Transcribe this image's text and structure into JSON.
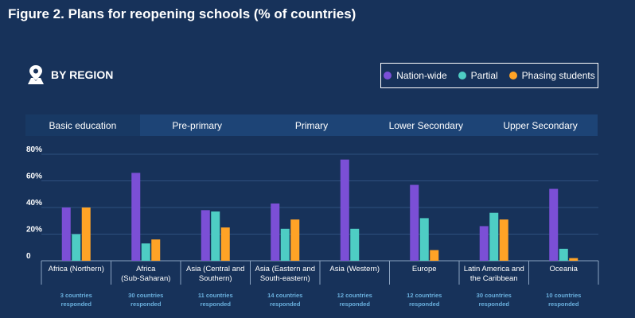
{
  "title": "Figure 2.  Plans for reopening schools (% of countries)",
  "section": {
    "label": "BY REGION",
    "icon": "location-pin-icon"
  },
  "legend": [
    {
      "label": "Nation-wide",
      "color": "#7b4fd6"
    },
    {
      "label": "Partial",
      "color": "#4ecdc4"
    },
    {
      "label": "Phasing students",
      "color": "#ffa326"
    }
  ],
  "tabs": [
    {
      "label": "Basic education",
      "active": true
    },
    {
      "label": "Pre-primary",
      "active": false
    },
    {
      "label": "Primary",
      "active": false
    },
    {
      "label": "Lower Secondary",
      "active": false
    },
    {
      "label": "Upper Secondary",
      "active": false
    }
  ],
  "chart_data": {
    "type": "bar",
    "title": "Figure 2.  Plans for reopening schools (% of countries)",
    "ylim": [
      0,
      80
    ],
    "yticks": [
      "0",
      "20%",
      "40%",
      "60%",
      "80%"
    ],
    "grid": true,
    "legend_position": "top-right",
    "categories": [
      "Africa (Northern)",
      "Africa (Sub-Saharan)",
      "Asia (Central and Southern)",
      "Asia (Eastern and South-eastern)",
      "Asia (Western)",
      "Europe",
      "Latin America and the Caribbean",
      "Oceania"
    ],
    "category_lines": [
      [
        "Africa (Northern)"
      ],
      [
        "Africa",
        "(Sub-Saharan)"
      ],
      [
        "Asia (Central and",
        "Southern)"
      ],
      [
        "Asia (Eastern and",
        "South-eastern)"
      ],
      [
        "Asia (Western)"
      ],
      [
        "Europe"
      ],
      [
        "Latin America and",
        "the Caribbean"
      ],
      [
        "Oceania"
      ]
    ],
    "responded": [
      [
        "3 countries",
        "responded"
      ],
      [
        "30 countries",
        "responded"
      ],
      [
        "11 countries",
        "responded"
      ],
      [
        "14 countries",
        "responded"
      ],
      [
        "12 countries",
        "responded"
      ],
      [
        "12 countries",
        "responded"
      ],
      [
        "30 countries",
        "responded"
      ],
      [
        "10 countries",
        "responded"
      ]
    ],
    "series": [
      {
        "name": "Nation-wide",
        "color": "#7b4fd6",
        "values": [
          40,
          66,
          38,
          43,
          76,
          57,
          26,
          54
        ]
      },
      {
        "name": "Partial",
        "color": "#4ecdc4",
        "values": [
          20,
          13,
          37,
          24,
          24,
          32,
          36,
          9
        ]
      },
      {
        "name": "Phasing students",
        "color": "#ffa326",
        "values": [
          40,
          16,
          25,
          31,
          0,
          8,
          31,
          2
        ]
      }
    ]
  }
}
